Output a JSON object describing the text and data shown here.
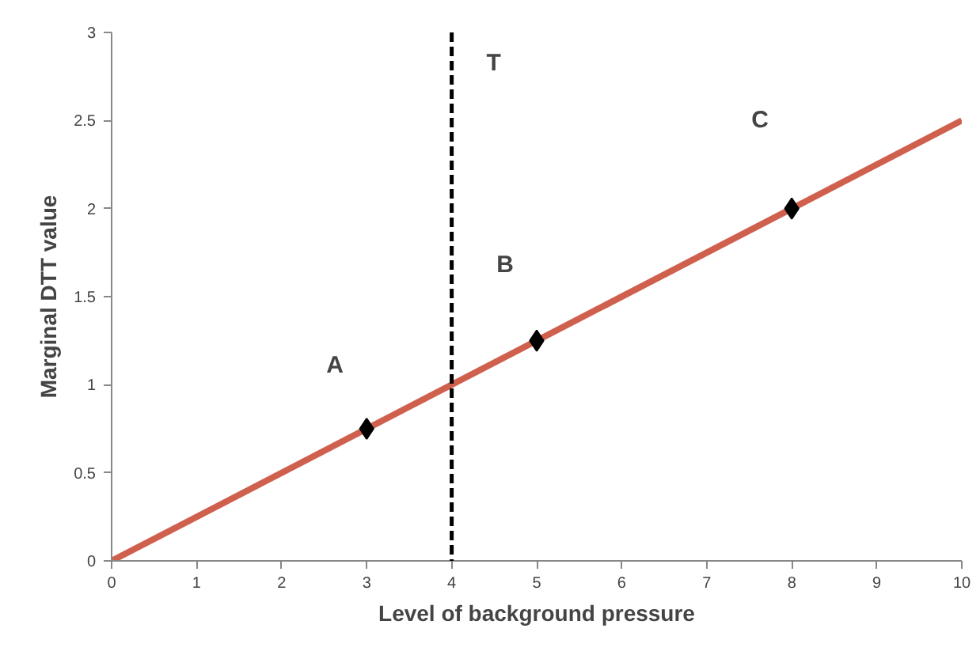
{
  "chart_data": {
    "type": "line",
    "xlabel": "Level of background pressure",
    "ylabel": "Marginal DTT value",
    "xlim": [
      0,
      10
    ],
    "ylim": [
      0,
      3
    ],
    "xticks": [
      0,
      1,
      2,
      3,
      4,
      5,
      6,
      7,
      8,
      9,
      10
    ],
    "yticks": [
      0,
      0.5,
      1,
      1.5,
      2,
      2.5,
      3
    ],
    "grid": false,
    "series": [
      {
        "color": "#d0604e",
        "x": [
          0,
          10
        ],
        "values": [
          0,
          2.5
        ]
      },
      {
        "type": "scatter",
        "color": "#000000",
        "marker": "diamond",
        "x": [
          3,
          5,
          8
        ],
        "values": [
          0.75,
          1.25,
          2
        ]
      }
    ],
    "ref_lines": [
      {
        "axis": "x",
        "value": 4,
        "label": "T",
        "color": "#000000",
        "line_style": "dashed"
      }
    ],
    "annotations": [
      "A",
      "B",
      "C"
    ]
  }
}
